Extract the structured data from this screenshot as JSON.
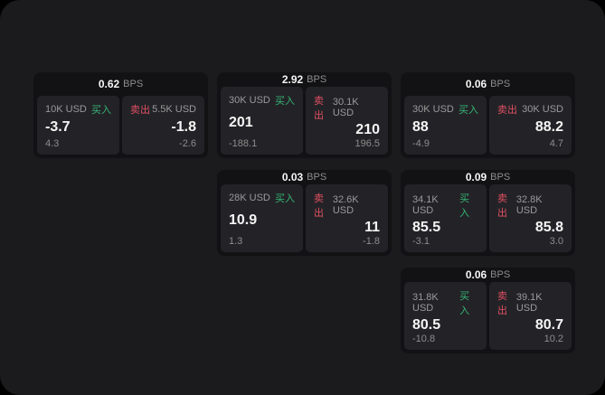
{
  "labels": {
    "bps_unit": "BPS",
    "buy": "买入",
    "sell": "卖出"
  },
  "colors": {
    "page_bg": "#000000",
    "panel_bg": "#1b1b1d",
    "card_bg": "#121214",
    "tile_bg": "#232327",
    "text_primary": "#f5f5f5",
    "text_secondary": "#9a9a9a",
    "buy_green": "#35b575",
    "sell_red": "#e14f62"
  },
  "cards": [
    {
      "bps": "0.62",
      "buy": {
        "amount": "10K USD",
        "price": "-3.7",
        "delta": "4.3"
      },
      "sell": {
        "amount": "5.5K USD",
        "price": "-1.8",
        "delta": "-2.6"
      }
    },
    {
      "bps": "2.92",
      "buy": {
        "amount": "30K USD",
        "price": "201",
        "delta": "-188.1"
      },
      "sell": {
        "amount": "30.1K USD",
        "price": "210",
        "delta": "196.5"
      }
    },
    {
      "bps": "0.06",
      "buy": {
        "amount": "30K USD",
        "price": "88",
        "delta": "-4.9"
      },
      "sell": {
        "amount": "30K USD",
        "price": "88.2",
        "delta": "4.7"
      }
    },
    {
      "bps": "0.03",
      "buy": {
        "amount": "28K USD",
        "price": "10.9",
        "delta": "1.3"
      },
      "sell": {
        "amount": "32.6K USD",
        "price": "11",
        "delta": "-1.8"
      }
    },
    {
      "bps": "0.09",
      "buy": {
        "amount": "34.1K USD",
        "price": "85.5",
        "delta": "-3.1"
      },
      "sell": {
        "amount": "32.8K USD",
        "price": "85.8",
        "delta": "3.0"
      }
    },
    {
      "bps": "0.06",
      "buy": {
        "amount": "31.8K USD",
        "price": "80.5",
        "delta": "-10.8"
      },
      "sell": {
        "amount": "39.1K USD",
        "price": "80.7",
        "delta": "10.2"
      }
    }
  ]
}
